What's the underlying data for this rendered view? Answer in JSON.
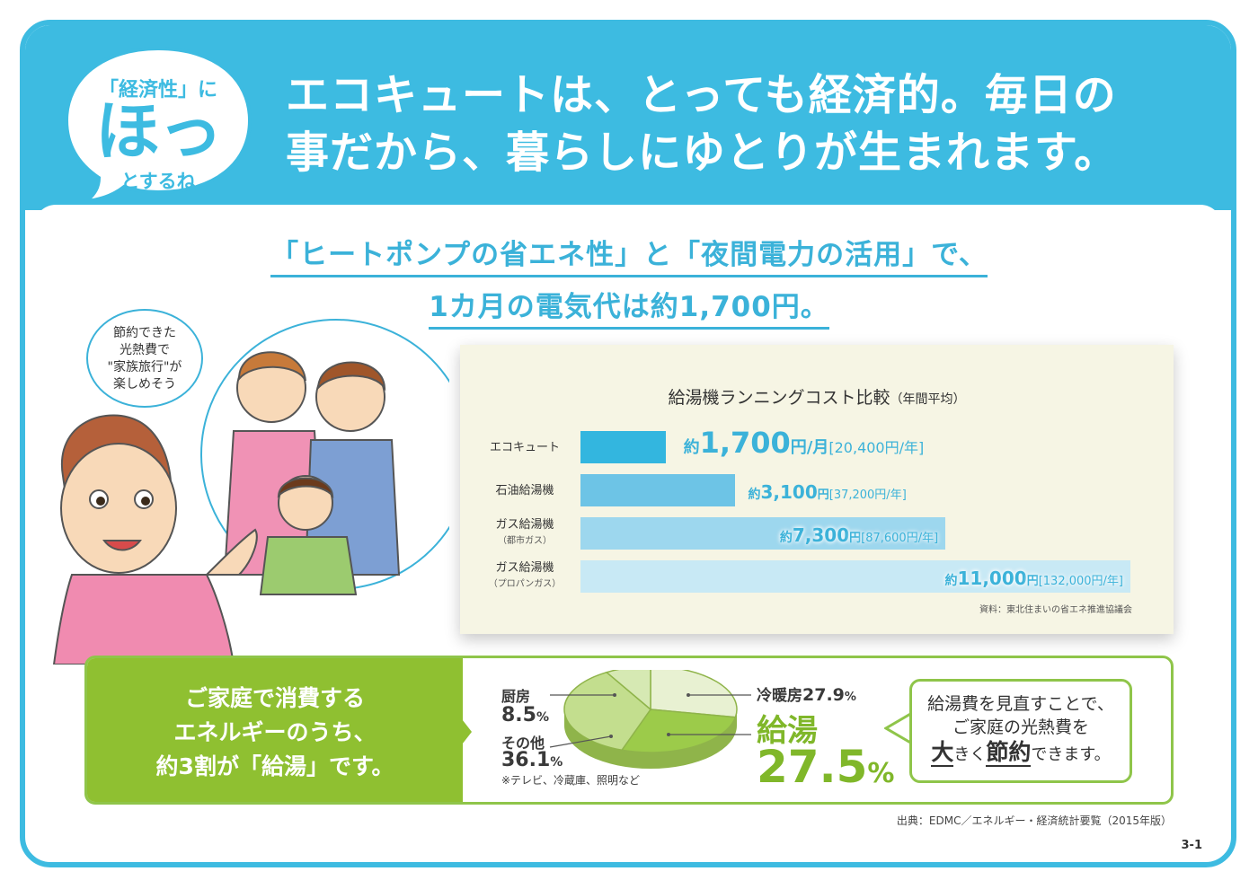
{
  "header": {
    "badge_top": "「経済性」に",
    "badge_big": "ほっ",
    "badge_bottom": "とするね",
    "headline_line1": "エコキュートは、とっても経済的。毎日の",
    "headline_line2": "事だから、暮らしにゆとりが生まれます。"
  },
  "subhead": {
    "line1": "「ヒートポンプの省エネ性」と「夜間電力の活用」で、",
    "line2": "1カ月の電気代は約1,700円。"
  },
  "speech_bubble": {
    "line1": "節約できた",
    "line2": "光熱費で",
    "line3": "\"家族旅行\"が",
    "line4": "楽しめそう"
  },
  "chart_data": {
    "type": "bar",
    "title": "給湯機ランニングコスト比較",
    "title_note": "（年間平均）",
    "source": "資料：東北住まいの省エネ推進協議会",
    "rows": [
      {
        "label": "エコキュート",
        "sub": "",
        "monthly": 1700,
        "text_prefix": "約",
        "text_value": "1,700",
        "text_unit": "円/月",
        "annual_text": "[20,400円/年]",
        "color": "#33b6df"
      },
      {
        "label": "石油給湯機",
        "sub": "",
        "monthly": 3100,
        "text_prefix": "約",
        "text_value": "3,100",
        "text_unit": "円",
        "annual_text": "[37,200円/年]",
        "color": "#6dc4e6"
      },
      {
        "label": "ガス給湯機",
        "sub": "（都市ガス）",
        "monthly": 7300,
        "text_prefix": "約",
        "text_value": "7,300",
        "text_unit": "円",
        "annual_text": "[87,600円/年]",
        "color": "#9dd7ee"
      },
      {
        "label": "ガス給湯機",
        "sub": "（プロパンガス）",
        "monthly": 11000,
        "text_prefix": "約",
        "text_value": "11,000",
        "text_unit": "円",
        "annual_text": "[132,000円/年]",
        "color": "#c8e9f5"
      }
    ]
  },
  "energy": {
    "line1": "ご家庭で消費する",
    "line2": "エネルギーのうち、",
    "line3": "約3割が「給湯」です。",
    "pie": [
      {
        "name": "冷暖房",
        "value": 27.9,
        "color": "#e8f1d2"
      },
      {
        "name": "給湯",
        "value": 27.5,
        "color": "#9ccb4a"
      },
      {
        "name": "その他",
        "value": 36.1,
        "color": "#c3de8e"
      },
      {
        "name": "厨房",
        "value": 8.5,
        "color": "#d6e9b3"
      }
    ],
    "label_cooking": "厨房",
    "label_cooking_val": "8.5",
    "label_other": "その他",
    "label_other_val": "36.1",
    "label_other_note": "※テレビ、冷蔵庫、照明など",
    "label_heating": "冷暖房",
    "label_heating_val": "27.9",
    "label_hotwater": "給湯",
    "label_hotwater_val": "27.5",
    "percent": "%"
  },
  "note": {
    "line1": "給湯費を見直すことで、",
    "line2": "ご家庭の光熱費を",
    "line3_a": "大",
    "line3_b": "きく",
    "line3_c": "節約",
    "line3_d": "できます。"
  },
  "footer": {
    "source": "出典：EDMC／エネルギー・経済統計要覧（2015年版）",
    "page": "3-1"
  },
  "colors": {
    "blue": "#3dbbe1",
    "green": "#8fc031",
    "green_dark": "#80b72a"
  }
}
